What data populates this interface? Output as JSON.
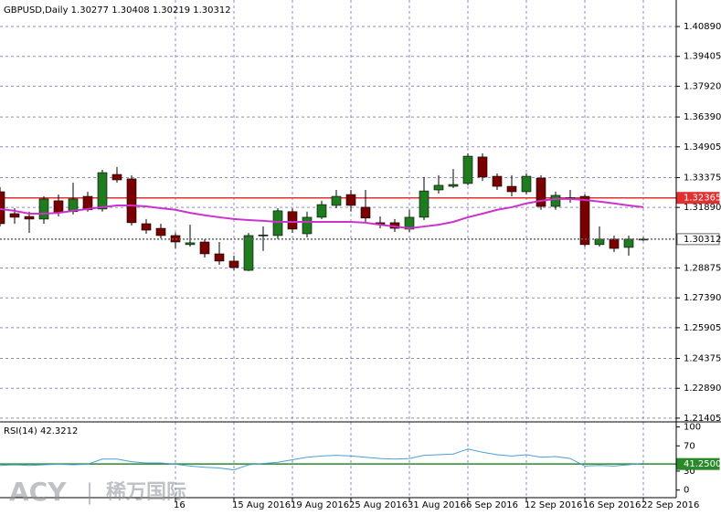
{
  "chart_data": [
    {
      "type": "candlestick",
      "title": "GBPUSD,Daily  1.30277 1.30408 1.30219 1.30312",
      "xlim": [
        0,
        46.25
      ],
      "xticks": [
        {
          "value": 12,
          "label": "16"
        },
        {
          "value": 16,
          "label": "15 Aug 2016"
        },
        {
          "value": 20,
          "label": "19 Aug 2016"
        },
        {
          "value": 24,
          "label": "25 Aug 2016"
        },
        {
          "value": 28,
          "label": "31 Aug 2016"
        },
        {
          "value": 32,
          "label": "6 Sep 2016"
        },
        {
          "value": 36,
          "label": "12 Sep 2016"
        },
        {
          "value": 40,
          "label": "16 Sep 2016"
        },
        {
          "value": 44,
          "label": "22 Sep 2016"
        }
      ],
      "ylim": [
        1.2122,
        1.4221
      ],
      "yticks": [
        {
          "value": 1.4089,
          "label": "1.40890"
        },
        {
          "value": 1.39405,
          "label": "1.39405"
        },
        {
          "value": 1.3792,
          "label": "1.37920"
        },
        {
          "value": 1.3639,
          "label": "1.36390"
        },
        {
          "value": 1.34905,
          "label": "1.34905"
        },
        {
          "value": 1.33375,
          "label": "1.33375"
        },
        {
          "value": 1.3189,
          "label": "1.31890"
        },
        {
          "value": 1.28875,
          "label": "1.28875"
        },
        {
          "value": 1.2739,
          "label": "1.27390"
        },
        {
          "value": 1.25905,
          "label": "1.25905"
        },
        {
          "value": 1.24375,
          "label": "1.24375"
        },
        {
          "value": 1.2289,
          "label": "1.22890"
        },
        {
          "value": 1.21405,
          "label": "1.21405"
        }
      ],
      "grid": true,
      "up_color": "#1e7b1e",
      "down_color": "#7a0000",
      "open": [
        1.3267,
        1.3158,
        1.3144,
        1.3131,
        1.3222,
        1.3168,
        1.3244,
        1.3181,
        1.3353,
        1.3331,
        1.3108,
        1.3085,
        1.3049,
        1.3004,
        1.3017,
        1.2958,
        1.2922,
        1.2876,
        1.3049,
        1.3049,
        1.3168,
        1.3058,
        1.314,
        1.3199,
        1.3253,
        1.319,
        1.3113,
        1.3113,
        1.3081,
        1.314,
        1.3276,
        1.3294,
        1.3308,
        1.344,
        1.3344,
        1.3294,
        1.3267,
        1.3335,
        1.3194,
        1.3235,
        1.3244,
        1.3004,
        1.3031,
        1.299,
        1.30277
      ],
      "high": [
        1.329,
        1.3185,
        1.3168,
        1.3244,
        1.3253,
        1.3312,
        1.3267,
        1.3376,
        1.339,
        1.3349,
        1.3131,
        1.3108,
        1.3062,
        1.3103,
        1.3031,
        1.3017,
        1.2949,
        1.3062,
        1.3094,
        1.3185,
        1.3185,
        1.3168,
        1.3222,
        1.3276,
        1.3276,
        1.3276,
        1.3144,
        1.3131,
        1.3177,
        1.334,
        1.3349,
        1.338,
        1.3458,
        1.3458,
        1.3358,
        1.3349,
        1.3358,
        1.3349,
        1.3267,
        1.3276,
        1.3253,
        1.3094,
        1.3049,
        1.3049,
        1.30408
      ],
      "low": [
        1.3094,
        1.3108,
        1.3062,
        1.3108,
        1.3144,
        1.3154,
        1.3168,
        1.3168,
        1.3312,
        1.3099,
        1.3058,
        1.3035,
        1.2985,
        1.2994,
        1.294,
        1.2904,
        1.2876,
        1.2872,
        1.2972,
        1.3031,
        1.3062,
        1.304,
        1.3131,
        1.3185,
        1.3168,
        1.3117,
        1.3085,
        1.3067,
        1.3067,
        1.3126,
        1.3258,
        1.3285,
        1.3299,
        1.3321,
        1.3276,
        1.3244,
        1.3253,
        1.3177,
        1.3177,
        1.3212,
        1.2994,
        1.2994,
        1.2967,
        1.2949,
        1.30219
      ],
      "close": [
        1.3108,
        1.314,
        1.3131,
        1.3231,
        1.3162,
        1.3231,
        1.3177,
        1.3362,
        1.3326,
        1.3113,
        1.3076,
        1.3049,
        1.3017,
        1.3013,
        1.2958,
        1.2922,
        1.289,
        1.3049,
        1.3052,
        1.3172,
        1.3081,
        1.314,
        1.3203,
        1.3244,
        1.3199,
        1.3136,
        1.3103,
        1.3085,
        1.314,
        1.3271,
        1.3299,
        1.3303,
        1.3444,
        1.334,
        1.3294,
        1.3267,
        1.3344,
        1.3194,
        1.3249,
        1.3237,
        1.3004,
        1.3031,
        1.2985,
        1.3031,
        1.30312
      ],
      "series": [
        {
          "color": "#cc33cc",
          "values": [
            1.3181,
            1.3172,
            1.3158,
            1.3158,
            1.3162,
            1.3172,
            1.3181,
            1.319,
            1.3199,
            1.3199,
            1.3194,
            1.3185,
            1.3177,
            1.3162,
            1.315,
            1.314,
            1.3131,
            1.3126,
            1.3122,
            1.3117,
            1.3117,
            1.3117,
            1.3117,
            1.3117,
            1.3117,
            1.3113,
            1.3103,
            1.3094,
            1.3085,
            1.3094,
            1.3103,
            1.3117,
            1.314,
            1.3158,
            1.3177,
            1.319,
            1.3209,
            1.3222,
            1.3231,
            1.3231,
            1.3226,
            1.3218,
            1.3209,
            1.3199,
            1.319
          ]
        }
      ],
      "level": {
        "value": 1.32365,
        "label": "1.32365",
        "color": "#e03030"
      },
      "last_price": {
        "value": 1.30312,
        "label": "1.30312"
      }
    },
    {
      "type": "line",
      "title": "RSI(14) 42.3212",
      "xlim": [
        0,
        46.25
      ],
      "ylim": [
        -12,
        108
      ],
      "yticks": [
        100,
        70,
        30,
        0
      ],
      "series": [
        {
          "color": "#4a9fd8",
          "values": [
            39,
            40,
            39,
            40,
            41,
            40,
            41,
            49,
            49,
            45,
            43,
            43,
            41,
            38,
            36,
            35,
            32,
            40,
            42,
            44,
            48,
            52,
            54,
            55,
            54,
            52,
            50,
            49,
            50,
            55,
            56,
            57,
            65,
            60,
            56,
            54,
            56,
            52,
            53,
            50,
            38,
            39,
            38,
            40,
            42.3212
          ]
        }
      ],
      "level": {
        "value": 41.25,
        "label": "41.2500",
        "color": "#2a8a2a"
      }
    }
  ],
  "watermark": {
    "brand": "ACY",
    "separator": "|",
    "name": "稀万国际"
  }
}
